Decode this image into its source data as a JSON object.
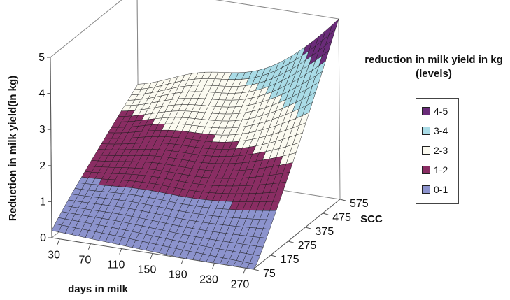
{
  "chart_data": {
    "type": "surface",
    "zlabel": "Reduction in milk yield(in kg)",
    "xlabel": "days in milk",
    "ylabel": "SCC",
    "x_ticks": [
      "30",
      "70",
      "110",
      "150",
      "190",
      "230",
      "270"
    ],
    "y_ticks": [
      "75",
      "175",
      "275",
      "375",
      "475",
      "575"
    ],
    "z_ticks": [
      "0",
      "1",
      "2",
      "3",
      "4",
      "5"
    ],
    "x_range": [
      30,
      290
    ],
    "y_range": [
      75,
      575
    ],
    "z_range": [
      0,
      5
    ],
    "surface_samples": [
      {
        "days": 30,
        "scc": 75,
        "reduction": 0.2
      },
      {
        "days": 290,
        "scc": 75,
        "reduction": 0.3
      },
      {
        "days": 30,
        "scc": 575,
        "reduction": 2.2
      },
      {
        "days": 290,
        "scc": 575,
        "reduction": 5.0
      },
      {
        "days": 290,
        "scc": 375,
        "reduction": 2.3
      }
    ],
    "legend": {
      "title": "reduction in milk yield in kg (levels)",
      "items": [
        {
          "label": "4-5",
          "color": "#6a2b79"
        },
        {
          "label": "3-4",
          "color": "#a9dbe6"
        },
        {
          "label": "2-3",
          "color": "#fbfaf0"
        },
        {
          "label": "1-2",
          "color": "#8a2d63"
        },
        {
          "label": "0-1",
          "color": "#8c93cd"
        }
      ]
    }
  }
}
